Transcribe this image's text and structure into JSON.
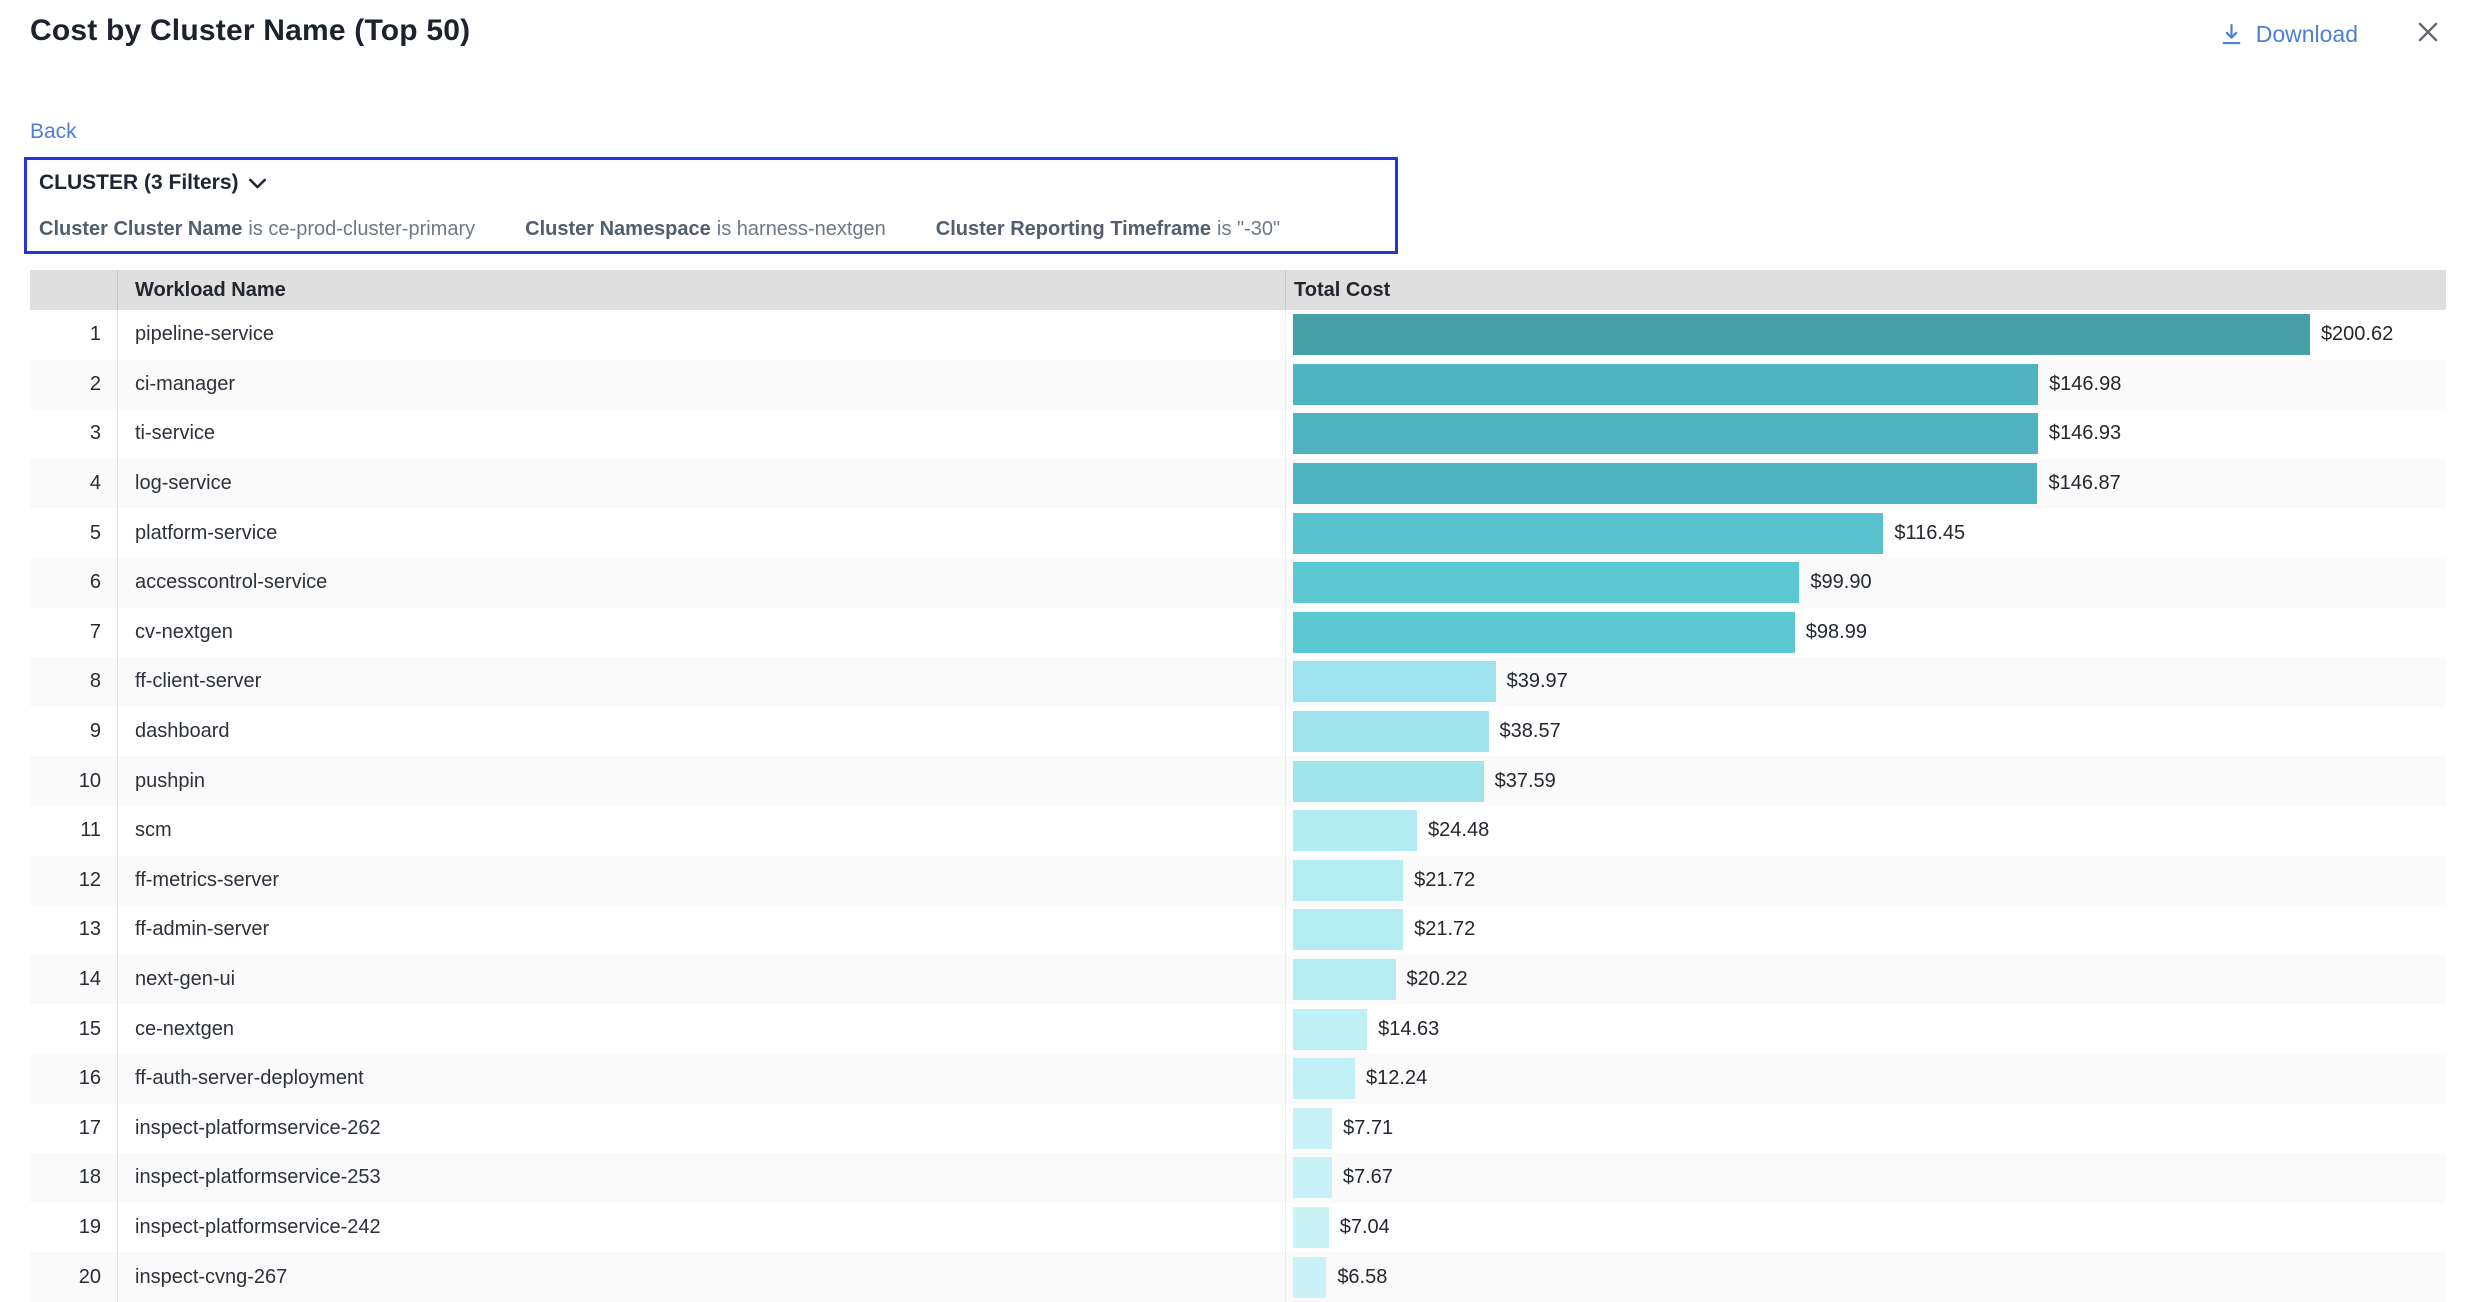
{
  "header": {
    "title": "Cost by Cluster Name (Top 50)",
    "download_label": "Download",
    "accent_blue": "#4c7fd9"
  },
  "nav": {
    "back_label": "Back"
  },
  "filter_panel": {
    "heading": "CLUSTER (3 Filters)",
    "border_color": "#2533db",
    "filters": [
      {
        "label": "Cluster Cluster Name",
        "operator": "is",
        "value": "ce-prod-cluster-primary"
      },
      {
        "label": "Cluster Namespace",
        "operator": "is",
        "value": "harness-nextgen"
      },
      {
        "label": "Cluster Reporting Timeframe",
        "operator": "is",
        "value": "\"-30\""
      }
    ]
  },
  "table": {
    "columns": [
      "Workload Name",
      "Total Cost"
    ],
    "rows": [
      {
        "rank": 1,
        "name": "pipeline-service",
        "value": 200.62,
        "value_label": "$200.62",
        "bar_color": "#459ea8"
      },
      {
        "rank": 2,
        "name": "ci-manager",
        "value": 146.98,
        "value_label": "$146.98",
        "bar_color": "#4fb4c0"
      },
      {
        "rank": 3,
        "name": "ti-service",
        "value": 146.93,
        "value_label": "$146.93",
        "bar_color": "#4fb4c0"
      },
      {
        "rank": 4,
        "name": "log-service",
        "value": 146.87,
        "value_label": "$146.87",
        "bar_color": "#4fb4c0"
      },
      {
        "rank": 5,
        "name": "platform-service",
        "value": 116.45,
        "value_label": "$116.45",
        "bar_color": "#57c2cd"
      },
      {
        "rank": 6,
        "name": "accesscontrol-service",
        "value": 99.9,
        "value_label": "$99.90",
        "bar_color": "#5bc8d2"
      },
      {
        "rank": 7,
        "name": "cv-nextgen",
        "value": 98.99,
        "value_label": "$98.99",
        "bar_color": "#5bc8d2"
      },
      {
        "rank": 8,
        "name": "ff-client-server",
        "value": 39.97,
        "value_label": "$39.97",
        "bar_color": "#9de2ec"
      },
      {
        "rank": 9,
        "name": "dashboard",
        "value": 38.57,
        "value_label": "$38.57",
        "bar_color": "#9fe3ec"
      },
      {
        "rank": 10,
        "name": "pushpin",
        "value": 37.59,
        "value_label": "$37.59",
        "bar_color": "#a0e4ec"
      },
      {
        "rank": 11,
        "name": "scm",
        "value": 24.48,
        "value_label": "$24.48",
        "bar_color": "#b2ecf2"
      },
      {
        "rank": 12,
        "name": "ff-metrics-server",
        "value": 21.72,
        "value_label": "$21.72",
        "bar_color": "#b4edf2"
      },
      {
        "rank": 13,
        "name": "ff-admin-server",
        "value": 21.72,
        "value_label": "$21.72",
        "bar_color": "#b4edf2"
      },
      {
        "rank": 14,
        "name": "next-gen-ui",
        "value": 20.22,
        "value_label": "$20.22",
        "bar_color": "#b5edf3"
      },
      {
        "rank": 15,
        "name": "ce-nextgen",
        "value": 14.63,
        "value_label": "$14.63",
        "bar_color": "#bff0f4"
      },
      {
        "rank": 16,
        "name": "ff-auth-server-deployment",
        "value": 12.24,
        "value_label": "$12.24",
        "bar_color": "#c1f0f5"
      },
      {
        "rank": 17,
        "name": "inspect-platformservice-262",
        "value": 7.71,
        "value_label": "$7.71",
        "bar_color": "#c9f2f6"
      },
      {
        "rank": 18,
        "name": "inspect-platformservice-253",
        "value": 7.67,
        "value_label": "$7.67",
        "bar_color": "#c9f2f6"
      },
      {
        "rank": 19,
        "name": "inspect-platformservice-242",
        "value": 7.04,
        "value_label": "$7.04",
        "bar_color": "#caf3f6"
      },
      {
        "rank": 20,
        "name": "inspect-cvng-267",
        "value": 6.58,
        "value_label": "$6.58",
        "bar_color": "#cbf3f7"
      }
    ]
  },
  "chart_data": {
    "type": "bar",
    "orientation": "horizontal",
    "title": "Cost by Cluster Name (Top 50)",
    "xlabel": "Total Cost",
    "ylabel": "Workload Name",
    "categories": [
      "pipeline-service",
      "ci-manager",
      "ti-service",
      "log-service",
      "platform-service",
      "accesscontrol-service",
      "cv-nextgen",
      "ff-client-server",
      "dashboard",
      "pushpin",
      "scm",
      "ff-metrics-server",
      "ff-admin-server",
      "next-gen-ui",
      "ce-nextgen",
      "ff-auth-server-deployment",
      "inspect-platformservice-262",
      "inspect-platformservice-253",
      "inspect-platformservice-242",
      "inspect-cvng-267"
    ],
    "values": [
      200.62,
      146.98,
      146.93,
      146.87,
      116.45,
      99.9,
      98.99,
      39.97,
      38.57,
      37.59,
      24.48,
      21.72,
      21.72,
      20.22,
      14.63,
      12.24,
      7.71,
      7.67,
      7.04,
      6.58
    ],
    "value_labels": [
      "$200.62",
      "$146.98",
      "$146.93",
      "$146.87",
      "$116.45",
      "$99.90",
      "$98.99",
      "$39.97",
      "$38.57",
      "$37.59",
      "$24.48",
      "$21.72",
      "$21.72",
      "$20.22",
      "$14.63",
      "$12.24",
      "$7.71",
      "$7.67",
      "$7.04",
      "$6.58"
    ],
    "max_value": 200.62,
    "colorscale": [
      "#459ea8",
      "#cbf3f7"
    ],
    "grid": false,
    "legend": false
  }
}
